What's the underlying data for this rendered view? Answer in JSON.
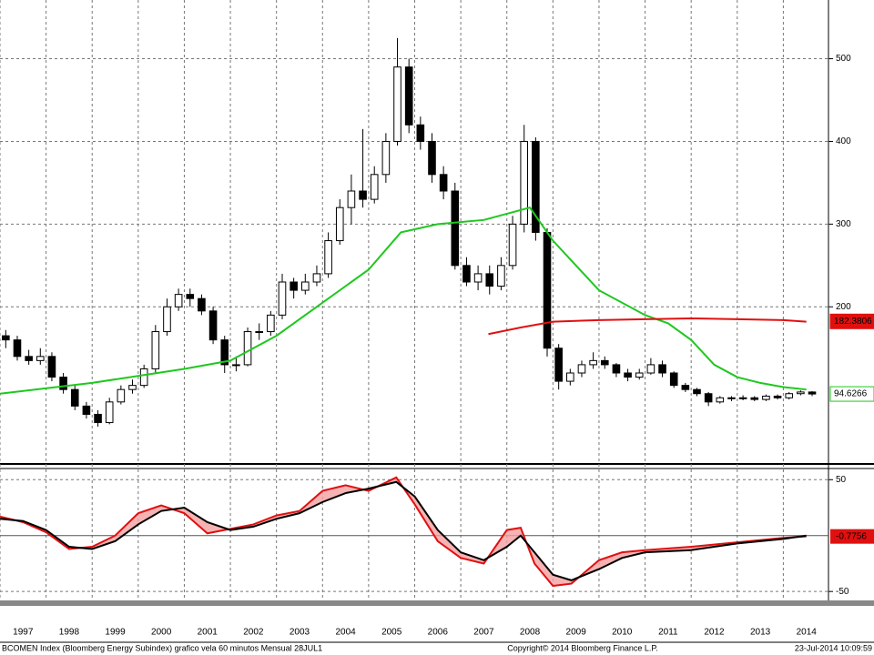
{
  "chart_data": [
    {
      "type": "candlestick",
      "xlim": [
        1997,
        2014.98
      ],
      "xticks": [
        1997,
        1998,
        1999,
        2000,
        2001,
        2002,
        2003,
        2004,
        2005,
        2006,
        2007,
        2008,
        2009,
        2010,
        2011,
        2012,
        2013,
        2014
      ],
      "ylim": [
        10,
        571
      ],
      "yticks": [
        200,
        300,
        400,
        500
      ],
      "grid": true,
      "color": "#000000",
      "open": [
        165,
        160,
        140,
        135,
        140,
        115,
        100,
        80,
        70,
        60,
        85,
        100,
        105,
        125,
        170,
        200,
        215,
        210,
        195,
        160,
        130,
        130,
        170,
        170,
        190,
        230,
        220,
        230,
        240,
        280,
        320,
        340,
        330,
        360,
        400,
        490,
        420,
        400,
        360,
        340,
        250,
        230,
        240,
        225,
        250,
        300,
        400,
        290,
        150,
        110,
        120,
        130,
        135,
        130,
        120,
        115,
        120,
        130,
        120,
        105,
        100,
        95,
        85,
        90,
        90,
        90,
        88,
        92,
        90,
        95,
        97
      ],
      "high": [
        172,
        165,
        148,
        150,
        145,
        120,
        105,
        85,
        75,
        90,
        105,
        112,
        130,
        178,
        210,
        222,
        222,
        215,
        200,
        165,
        140,
        175,
        180,
        195,
        240,
        235,
        240,
        250,
        290,
        330,
        360,
        415,
        370,
        410,
        525,
        500,
        430,
        410,
        370,
        350,
        260,
        250,
        250,
        260,
        310,
        420,
        405,
        295,
        155,
        125,
        135,
        145,
        140,
        132,
        125,
        125,
        138,
        135,
        122,
        108,
        102,
        97,
        92,
        92,
        93,
        92,
        94,
        94,
        97,
        99,
        98
      ],
      "low": [
        150,
        135,
        130,
        130,
        110,
        95,
        75,
        65,
        55,
        58,
        82,
        95,
        102,
        120,
        165,
        195,
        200,
        190,
        155,
        120,
        122,
        128,
        160,
        165,
        185,
        210,
        215,
        225,
        235,
        275,
        300,
        320,
        325,
        350,
        395,
        410,
        390,
        350,
        330,
        245,
        225,
        220,
        215,
        220,
        245,
        290,
        280,
        140,
        100,
        105,
        115,
        125,
        125,
        115,
        110,
        112,
        118,
        115,
        102,
        97,
        92,
        80,
        83,
        86,
        87,
        86,
        86,
        88,
        88,
        93,
        92
      ],
      "close": [
        160,
        140,
        135,
        140,
        115,
        100,
        80,
        70,
        60,
        85,
        100,
        105,
        125,
        170,
        200,
        215,
        210,
        195,
        160,
        130,
        130,
        170,
        170,
        190,
        230,
        220,
        230,
        240,
        280,
        320,
        340,
        330,
        360,
        400,
        490,
        420,
        400,
        360,
        340,
        250,
        230,
        240,
        225,
        250,
        300,
        400,
        290,
        150,
        110,
        120,
        130,
        135,
        130,
        120,
        115,
        120,
        130,
        120,
        105,
        100,
        95,
        85,
        90,
        90,
        90,
        88,
        92,
        90,
        95,
        97,
        94.6
      ],
      "series": [
        {
          "color": "#1ec81e",
          "last": 94.6266,
          "x": [
            1997,
            1999,
            2001,
            2002,
            2003,
            2004,
            2005,
            2005.7,
            2006.5,
            2007.5,
            2008.5,
            2009,
            2009.5,
            2010,
            2011,
            2011.5,
            2012,
            2012.5,
            2013,
            2013.5,
            2014,
            2014.5
          ],
          "values": [
            95,
            108,
            125,
            135,
            165,
            205,
            245,
            290,
            300,
            305,
            320,
            280,
            250,
            220,
            190,
            180,
            160,
            130,
            115,
            108,
            103,
            100
          ]
        },
        {
          "color": "#e01010",
          "last": 182.3806,
          "x": [
            2007.6,
            2008.3,
            2009,
            2010,
            2011,
            2012,
            2013,
            2014,
            2014.5
          ],
          "values": [
            167,
            175,
            182,
            184,
            185,
            186,
            185,
            184,
            182
          ]
        }
      ]
    },
    {
      "type": "line",
      "xlim": [
        1997,
        2014.98
      ],
      "ylim": [
        -58,
        60
      ],
      "yticks": [
        50,
        -50
      ],
      "grid": true,
      "x": [
        1997,
        1997.5,
        1998,
        1998.5,
        1999,
        1999.5,
        2000,
        2000.5,
        2001,
        2001.5,
        2002,
        2002.5,
        2003,
        2003.5,
        2004,
        2004.5,
        2005,
        2005.6,
        2006,
        2006.5,
        2007,
        2007.5,
        2008,
        2008.3,
        2008.6,
        2009,
        2009.4,
        2010,
        2010.5,
        2011,
        2012,
        2013,
        2014,
        2014.5
      ],
      "series": [
        {
          "color": "#000000",
          "values": [
            15,
            13,
            5,
            -10,
            -12,
            -5,
            10,
            22,
            25,
            12,
            5,
            8,
            15,
            20,
            30,
            38,
            42,
            48,
            35,
            5,
            -15,
            -22,
            -10,
            0,
            -15,
            -35,
            -40,
            -30,
            -20,
            -15,
            -13,
            -7,
            -3,
            0
          ]
        },
        {
          "color": "#e01010",
          "last": -0.7756,
          "values": [
            17,
            12,
            3,
            -12,
            -10,
            0,
            20,
            27,
            20,
            2,
            6,
            10,
            18,
            22,
            40,
            45,
            40,
            52,
            28,
            -5,
            -20,
            -25,
            5,
            7,
            -25,
            -45,
            -43,
            -22,
            -15,
            -13,
            -10,
            -6,
            -2,
            -0.78
          ]
        }
      ]
    }
  ],
  "footer": {
    "left": "BCOMEN Index (Bloomberg Energy Subindex) grafico vela 60 minutos  Mensual 28JUL1",
    "center": "Copyright© 2014 Bloomberg Finance L.P.",
    "right": "23-Jul-2014 10:09:59"
  }
}
